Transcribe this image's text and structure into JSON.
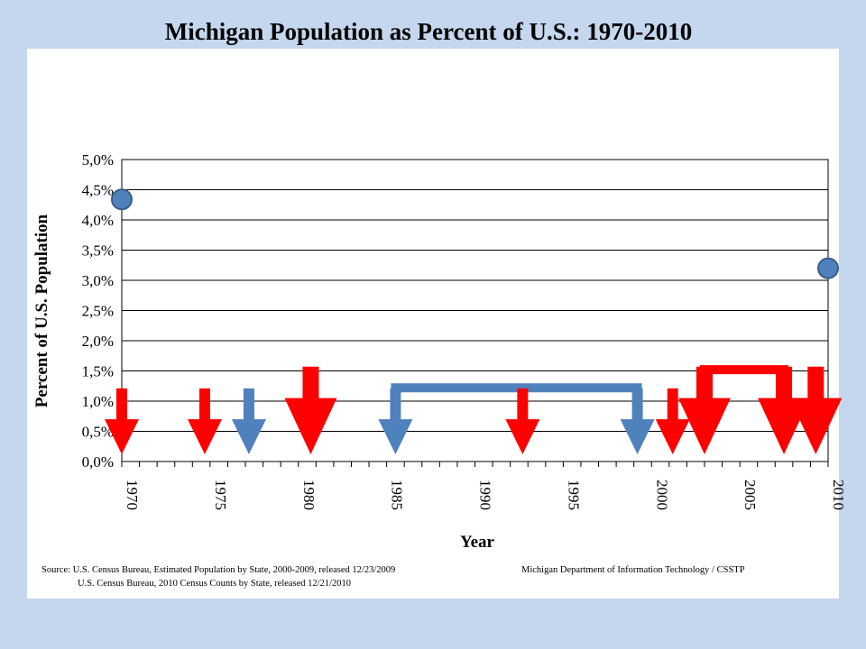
{
  "chart_data": {
    "type": "scatter",
    "title": "Michigan Population as Percent of U.S.: 1970-2010",
    "xlabel": "Year",
    "ylabel": "Percent of U.S. Population",
    "xlim": [
      1970,
      2010
    ],
    "ylim": [
      0,
      0.05
    ],
    "x_ticks": [
      "1970",
      "1975",
      "1980",
      "1985",
      "1990",
      "1995",
      "2000",
      "2005",
      "2010"
    ],
    "y_ticks": [
      "0,0%",
      "0,5%",
      "1,0%",
      "1,5%",
      "2,0%",
      "2,5%",
      "3,0%",
      "3,5%",
      "4,0%",
      "4,5%",
      "5,0%"
    ],
    "grid": true,
    "points": [
      {
        "x": 1970,
        "y": 0.0434
      },
      {
        "x": 2010,
        "y": 0.032
      }
    ],
    "point_color": "#4f81bd",
    "annotations": {
      "arrows": [
        {
          "x": 1970.0,
          "color": "#ff0000",
          "size": "medium"
        },
        {
          "x": 1974.7,
          "color": "#ff0000",
          "size": "medium"
        },
        {
          "x": 1977.2,
          "color": "#4f81bd",
          "size": "medium"
        },
        {
          "x": 1980.7,
          "color": "#ff0000",
          "size": "large"
        },
        {
          "x": 1985.5,
          "color": "#4f81bd",
          "size": "medium"
        },
        {
          "x": 1992.7,
          "color": "#ff0000",
          "size": "medium"
        },
        {
          "x": 1999.2,
          "color": "#4f81bd",
          "size": "medium"
        },
        {
          "x": 2001.2,
          "color": "#ff0000",
          "size": "medium"
        },
        {
          "x": 2003.0,
          "color": "#ff0000",
          "size": "large"
        },
        {
          "x": 2007.5,
          "color": "#ff0000",
          "size": "large"
        },
        {
          "x": 2009.3,
          "color": "#ff0000",
          "size": "large"
        }
      ],
      "brackets": [
        {
          "x1": 1985.5,
          "x2": 1999.2,
          "color": "#4f81bd"
        },
        {
          "x1": 2003.0,
          "x2": 2007.5,
          "color": "#ff0000"
        }
      ]
    }
  },
  "source": {
    "line1": "Source:  U.S.  Census Bureau, Estimated Population by State, 2000-2009, released 12/23/2009",
    "line2": "U.S.  Census Bureau, 2010 Census  Counts by State, released 12/21/2010",
    "credit": "Michigan Department of Information Technology / CSSTP"
  }
}
